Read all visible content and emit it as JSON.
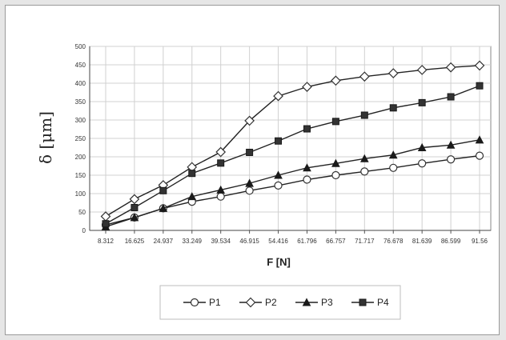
{
  "chart_data": {
    "type": "line",
    "title": "",
    "xlabel": "F [N]",
    "ylabel": "δ [μm]",
    "x": [
      "8.312",
      "16.625",
      "24.937",
      "33.249",
      "39.534",
      "46.915",
      "54.416",
      "61.796",
      "66.757",
      "71.717",
      "76.678",
      "81.639",
      "86.599",
      "91.56"
    ],
    "ylim": [
      0,
      500
    ],
    "yticks": [
      0,
      50,
      100,
      150,
      200,
      250,
      300,
      350,
      400,
      450,
      500
    ],
    "grid": true,
    "legend_position": "bottom",
    "series": [
      {
        "name": "P1",
        "marker": "circle-open",
        "values": [
          15,
          35,
          60,
          78,
          92,
          108,
          122,
          138,
          150,
          160,
          170,
          182,
          193,
          203
        ]
      },
      {
        "name": "P2",
        "marker": "diamond-open",
        "values": [
          38,
          85,
          123,
          172,
          213,
          298,
          365,
          390,
          407,
          418,
          427,
          436,
          443,
          448
        ]
      },
      {
        "name": "P3",
        "marker": "triangle-filled",
        "values": [
          10,
          35,
          60,
          92,
          110,
          128,
          150,
          170,
          182,
          195,
          205,
          225,
          232,
          246
        ]
      },
      {
        "name": "P4",
        "marker": "square-filled",
        "values": [
          18,
          62,
          108,
          155,
          183,
          212,
          243,
          276,
          296,
          313,
          333,
          347,
          363,
          393
        ]
      }
    ]
  }
}
